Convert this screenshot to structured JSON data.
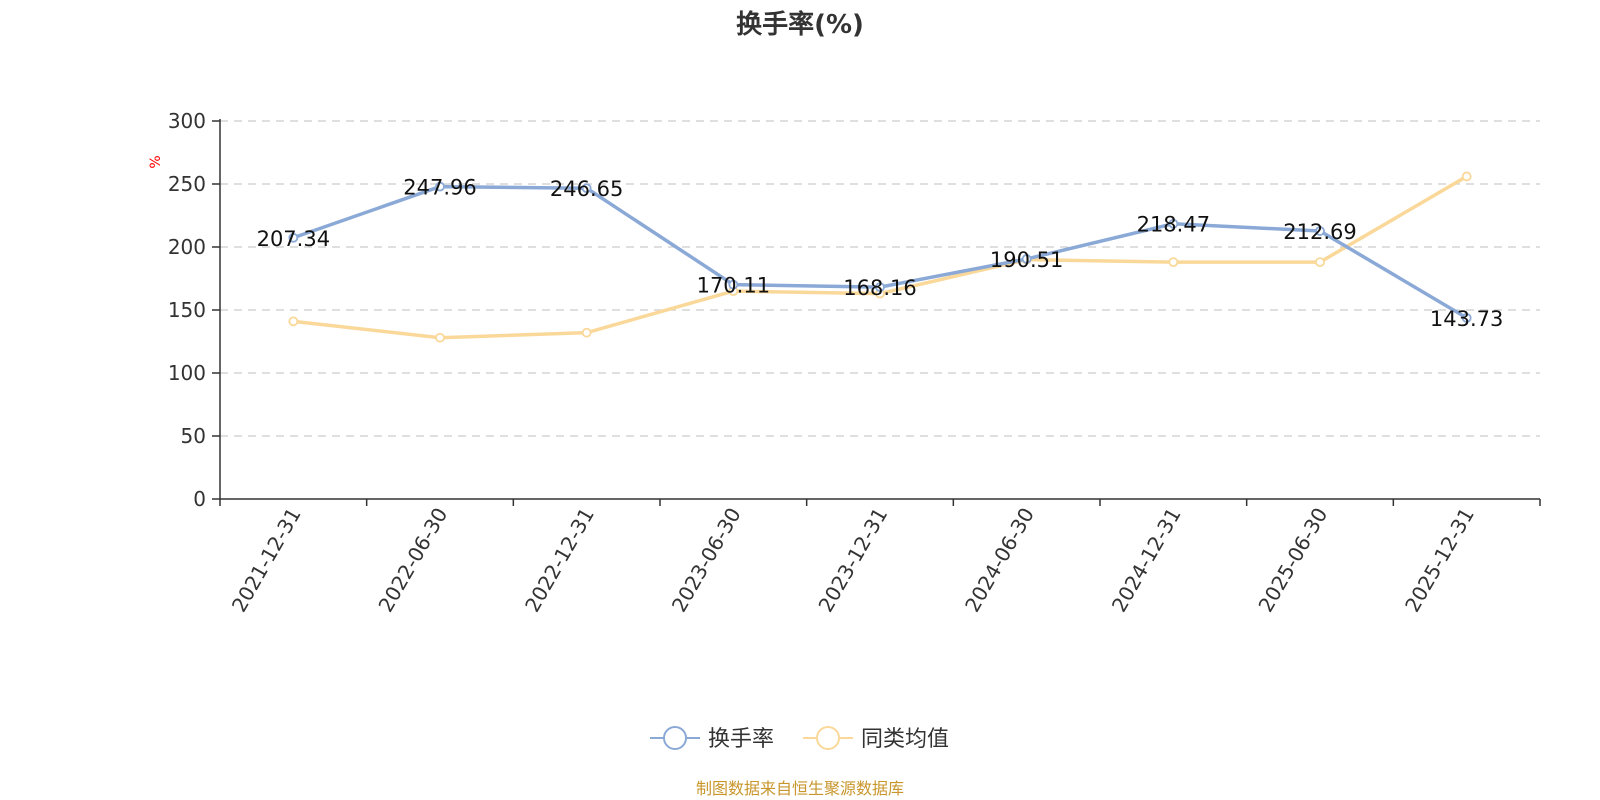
{
  "colors": {
    "primary": "#8BA9D6",
    "average": "#FAD89A",
    "axis": "#333333",
    "grid": "#CCCCCC",
    "unit": "#FF0000",
    "source": "#C8962C"
  },
  "chart_data": {
    "type": "line",
    "title": "换手率(%)",
    "ylabel": "%",
    "xlabel": "",
    "ylim": [
      0,
      300
    ],
    "y_ticks": [
      0,
      50,
      100,
      150,
      200,
      250,
      300
    ],
    "grid": true,
    "legend_position": "bottom-center",
    "categories": [
      "2021-12-31",
      "2022-06-30",
      "2022-12-31",
      "2023-06-30",
      "2023-12-31",
      "2024-06-30",
      "2024-12-31",
      "2025-06-30",
      "2025-12-31"
    ],
    "series": [
      {
        "name": "换手率",
        "color": "#8BA9D6",
        "values": [
          207.34,
          247.96,
          246.65,
          170.11,
          168.16,
          190.51,
          218.47,
          212.69,
          143.73
        ],
        "data_labels": [
          "207.34",
          "247.96",
          "246.65",
          "170.11",
          "168.16",
          "190.51",
          "218.47",
          "212.69",
          "143.73"
        ]
      },
      {
        "name": "同类均值",
        "color": "#FAD89A",
        "values": [
          141,
          128,
          132,
          165,
          163,
          190,
          188,
          188,
          256
        ]
      }
    ]
  },
  "source_text": "制图数据来自恒生聚源数据库"
}
